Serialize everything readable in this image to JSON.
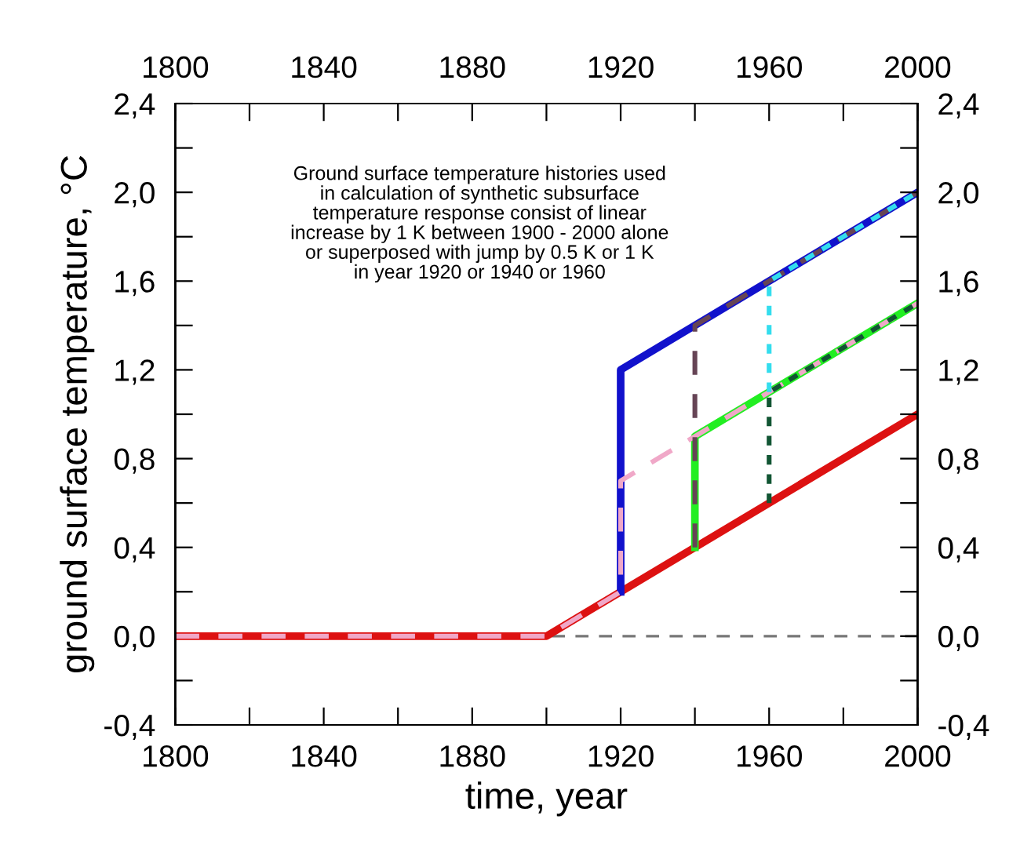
{
  "chart_data": {
    "type": "line",
    "xlabel": "time, year",
    "ylabel": "ground surface temperature, °C",
    "annotations": [
      "Ground surface temperature histories used\nin calculation of synthetic subsurface\ntemperature response consist of linear\nincrease by 1 K between 1900 - 2000 alone\nor superposed with jump by 0.5 K or 1 K\nin year 1920 or 1940 or 1960"
    ],
    "series": [
      {
        "x": [
          1800,
          1900,
          2000
        ],
        "values": [
          0,
          0,
          1.0
        ],
        "color": "#dd1111",
        "line_style": "solid"
      },
      {
        "x": [
          1920,
          1920,
          2000
        ],
        "values": [
          0.2,
          1.2,
          2.0
        ],
        "color": "#1111cc",
        "line_style": "solid"
      },
      {
        "x": [
          1940,
          1940,
          2000
        ],
        "values": [
          0.4,
          0.9,
          1.5
        ],
        "color": "#22ee22",
        "line_style": "solid"
      },
      {
        "x": [
          1800,
          1900,
          1920,
          1920,
          2000
        ],
        "values": [
          0,
          0,
          0.2,
          0.7,
          1.5
        ],
        "color": "#f0a8c8",
        "line_style": "dashed"
      },
      {
        "x": [
          1940,
          1940,
          2000
        ],
        "values": [
          0.4,
          1.4,
          2.0
        ],
        "color": "#664455",
        "line_style": "dashed"
      },
      {
        "x": [
          1960,
          1960,
          2000
        ],
        "values": [
          1.1,
          1.6,
          2.0
        ],
        "color": "#33ddee",
        "line_style": "dotted"
      },
      {
        "x": [
          1960,
          1960,
          2000
        ],
        "values": [
          0.6,
          1.1,
          1.5
        ],
        "color": "#115533",
        "line_style": "dotted"
      }
    ],
    "ref_lines": [
      {
        "axis": "y",
        "value": 0,
        "color": "#777777",
        "line_style": "dashed"
      }
    ],
    "xlim": [
      1800,
      2000
    ],
    "xticks": [
      1800,
      {
        "value": 1820,
        "label": null
      },
      1840,
      {
        "value": 1860,
        "label": null
      },
      1880,
      {
        "value": 1900,
        "label": null
      },
      1920,
      {
        "value": 1940,
        "label": null
      },
      1960,
      {
        "value": 1980,
        "label": null
      },
      2000
    ],
    "x2lim": [
      1800,
      2000
    ],
    "x2ticks": [
      1800,
      {
        "value": 1820,
        "label": null
      },
      1840,
      {
        "value": 1860,
        "label": null
      },
      1880,
      {
        "value": 1900,
        "label": null
      },
      1920,
      {
        "value": 1940,
        "label": null
      },
      1960,
      {
        "value": 1980,
        "label": null
      },
      2000
    ],
    "ylim": [
      -0.4,
      2.4
    ],
    "yticks": [
      {
        "value": -0.4,
        "label": "-0,4"
      },
      {
        "value": -0.2,
        "label": null
      },
      {
        "value": 0,
        "label": "0,0"
      },
      {
        "value": 0.2,
        "label": null
      },
      {
        "value": 0.4,
        "label": "0,4"
      },
      {
        "value": 0.6,
        "label": null
      },
      {
        "value": 0.8,
        "label": "0,8"
      },
      {
        "value": 1.0,
        "label": null
      },
      {
        "value": 1.2,
        "label": "1,2"
      },
      {
        "value": 1.4,
        "label": null
      },
      {
        "value": 1.6,
        "label": "1,6"
      },
      {
        "value": 1.8,
        "label": null
      },
      {
        "value": 2.0,
        "label": "2,0"
      },
      {
        "value": 2.2,
        "label": null
      },
      {
        "value": 2.4,
        "label": "2,4"
      }
    ],
    "y2lim": [
      -0.4,
      2.4
    ],
    "y2ticks": [
      {
        "value": -0.4,
        "label": "-0,4"
      },
      {
        "value": -0.2,
        "label": null
      },
      {
        "value": 0,
        "label": "0,0"
      },
      {
        "value": 0.2,
        "label": null
      },
      {
        "value": 0.4,
        "label": "0,4"
      },
      {
        "value": 0.6,
        "label": null
      },
      {
        "value": 0.8,
        "label": "0,8"
      },
      {
        "value": 1.0,
        "label": null
      },
      {
        "value": 1.2,
        "label": "1,2"
      },
      {
        "value": 1.4,
        "label": null
      },
      {
        "value": 1.6,
        "label": "1,6"
      },
      {
        "value": 1.8,
        "label": null
      },
      {
        "value": 2.0,
        "label": "2,0"
      },
      {
        "value": 2.2,
        "label": null
      },
      {
        "value": 2.4,
        "label": "2,4"
      }
    ]
  }
}
